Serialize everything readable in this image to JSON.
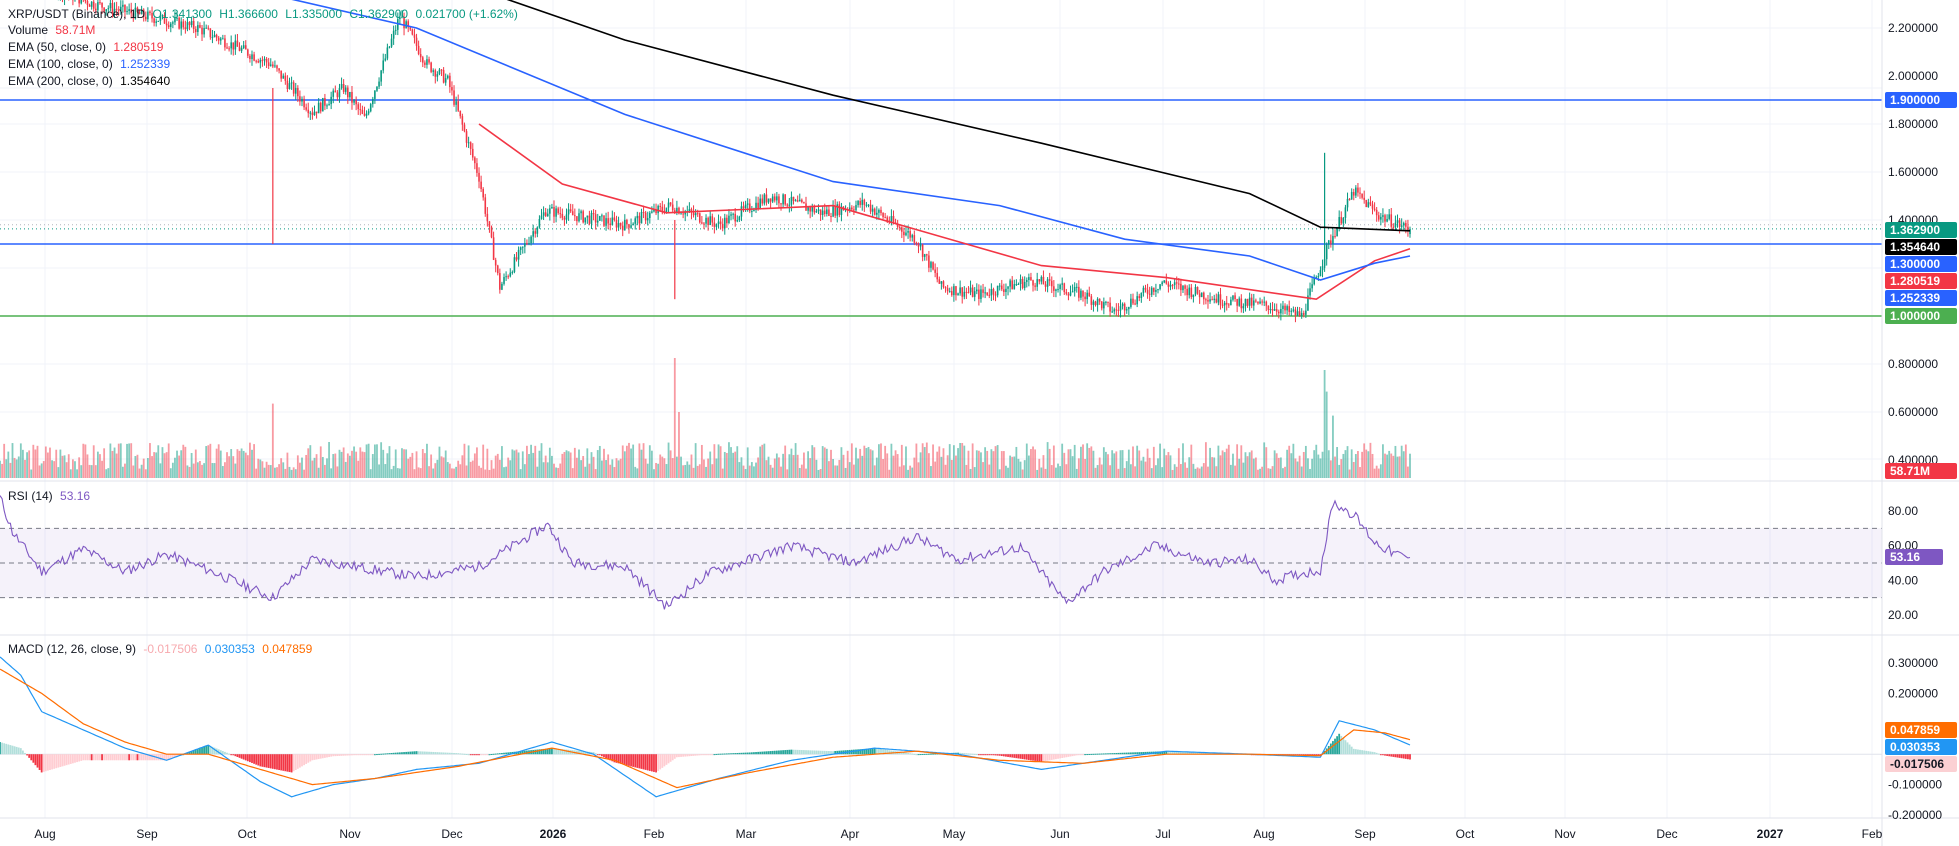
{
  "header": {
    "symbol": "XRP/USDT (Binance), 1D",
    "open": "O1.341300",
    "high": "H1.366600",
    "low": "L1.335000",
    "close": "C1.362900",
    "change": "0.021700 (+1.62%)"
  },
  "legend": {
    "volume": {
      "label": "Volume",
      "value": "58.71M"
    },
    "ema50": {
      "label": "EMA (50, close, 0)",
      "value": "1.280519"
    },
    "ema100": {
      "label": "EMA (100, close, 0)",
      "value": "1.252339"
    },
    "ema200": {
      "label": "EMA (200, close, 0)",
      "value": "1.354640"
    },
    "rsi": {
      "label": "RSI (14)",
      "value": "53.16"
    },
    "macd": {
      "label": "MACD (12, 26, close, 9)",
      "value_hist": "-0.017506",
      "value_macd": "0.030353",
      "value_signal": "0.047859"
    }
  },
  "colors": {
    "up": "#089981",
    "down": "#f23645",
    "ema50": "#f23645",
    "ema100": "#2962ff",
    "ema200": "#000000",
    "hline_blue": "#2962ff",
    "hline_green": "#4caf50",
    "rsi": "#7e57c2",
    "macd": "#2196f3",
    "signal": "#ff6d00"
  },
  "chart_data": [
    {
      "type": "candlestick",
      "x_axis": {
        "labels": [
          "Aug",
          "Sep",
          "Oct",
          "Nov",
          "Dec",
          "2026",
          "Feb",
          "Mar",
          "Apr",
          "May",
          "Jun",
          "Jul",
          "Aug",
          "Sep",
          "Oct",
          "Nov",
          "Dec",
          "2027",
          "Feb"
        ],
        "bold": [
          "2026",
          "2027"
        ]
      },
      "y_axis": {
        "range": [
          0.28,
          2.33
        ],
        "ticks": [
          "2.200000",
          "2.000000",
          "1.800000",
          "1.600000",
          "1.400000",
          "0.800000",
          "0.600000",
          "0.400000"
        ]
      },
      "price_path": [
        [
          0,
          2.45
        ],
        [
          45,
          2.3
        ],
        [
          95,
          2.2
        ],
        [
          130,
          2.05
        ],
        [
          150,
          1.85
        ],
        [
          165,
          1.95
        ],
        [
          175,
          1.82
        ],
        [
          192,
          2.25
        ],
        [
          205,
          2.05
        ],
        [
          215,
          1.98
        ],
        [
          230,
          1.58
        ],
        [
          240,
          1.12
        ],
        [
          262,
          1.44
        ],
        [
          300,
          1.38
        ],
        [
          322,
          1.46
        ],
        [
          345,
          1.38
        ],
        [
          370,
          1.5
        ],
        [
          395,
          1.43
        ],
        [
          415,
          1.47
        ],
        [
          440,
          1.32
        ],
        [
          452,
          1.12
        ],
        [
          470,
          1.09
        ],
        [
          495,
          1.15
        ],
        [
          520,
          1.09
        ],
        [
          535,
          1.02
        ],
        [
          558,
          1.14
        ],
        [
          585,
          1.07
        ],
        [
          610,
          1.04
        ],
        [
          625,
          1.0
        ],
        [
          638,
          1.3
        ],
        [
          650,
          1.52
        ],
        [
          662,
          1.42
        ],
        [
          677,
          1.36
        ]
      ],
      "ohlc_last": {
        "open": 1.3413,
        "high": 1.3666,
        "low": 1.335,
        "close": 1.3629
      },
      "ema": [
        {
          "name": "EMA (50, close, 0)",
          "color": "#f23645",
          "points": [
            [
              230,
              1.8
            ],
            [
              270,
              1.55
            ],
            [
              320,
              1.43
            ],
            [
              400,
              1.46
            ],
            [
              460,
              1.31
            ],
            [
              500,
              1.21
            ],
            [
              560,
              1.16
            ],
            [
              632,
              1.07
            ],
            [
              660,
              1.23
            ],
            [
              677,
              1.28
            ]
          ]
        },
        {
          "name": "EMA (100, close, 0)",
          "color": "#2962ff",
          "points": [
            [
              100,
              2.4
            ],
            [
              200,
              2.2
            ],
            [
              300,
              1.84
            ],
            [
              400,
              1.56
            ],
            [
              480,
              1.46
            ],
            [
              540,
              1.32
            ],
            [
              600,
              1.25
            ],
            [
              634,
              1.15
            ],
            [
              660,
              1.22
            ],
            [
              677,
              1.25
            ]
          ]
        },
        {
          "name": "EMA (200, close, 0)",
          "color": "#000000",
          "points": [
            [
              110,
              2.55
            ],
            [
              200,
              2.45
            ],
            [
              300,
              2.15
            ],
            [
              400,
              1.92
            ],
            [
              500,
              1.72
            ],
            [
              600,
              1.51
            ],
            [
              634,
              1.37
            ],
            [
              677,
              1.355
            ]
          ]
        }
      ],
      "hlines": [
        {
          "label": "1.900000",
          "value": 1.9,
          "color": "#2962ff"
        },
        {
          "label": "1.300000",
          "value": 1.3,
          "color": "#2962ff"
        },
        {
          "label": "1.000000",
          "value": 1.0,
          "color": "#4caf50"
        }
      ],
      "price_labels": [
        {
          "text": "1.362900",
          "value": 1.3629,
          "color": "#089981"
        },
        {
          "text": "1.354640",
          "value": 1.35464,
          "color": "#000000"
        },
        {
          "text": "1.300000",
          "value": 1.3,
          "color": "#2962ff"
        },
        {
          "text": "1.280519",
          "value": 1.280519,
          "color": "#f23645"
        },
        {
          "text": "1.252339",
          "value": 1.252339,
          "color": "#2962ff"
        },
        {
          "text": "1.000000",
          "value": 1.0,
          "color": "#4caf50"
        }
      ],
      "volume_label": {
        "text": "58.71M",
        "color": "#f23645"
      },
      "volume_spikes": [
        [
          131,
          0.62
        ],
        [
          324,
          1.0
        ],
        [
          326,
          0.55
        ],
        [
          636,
          0.9
        ],
        [
          637,
          0.72
        ],
        [
          640,
          0.52
        ]
      ]
    },
    {
      "type": "line",
      "name": "RSI (14)",
      "y_axis": {
        "ticks": [
          "80.00",
          "60.00",
          "40.00",
          "20.00"
        ],
        "range": [
          10,
          90
        ]
      },
      "bands": {
        "upper": 70,
        "middle": 50,
        "lower": 30
      },
      "points": [
        [
          0,
          88
        ],
        [
          6,
          68
        ],
        [
          20,
          45
        ],
        [
          40,
          58
        ],
        [
          60,
          45
        ],
        [
          80,
          55
        ],
        [
          100,
          46
        ],
        [
          131,
          30
        ],
        [
          150,
          52
        ],
        [
          170,
          48
        ],
        [
          200,
          42
        ],
        [
          230,
          48
        ],
        [
          263,
          72
        ],
        [
          275,
          50
        ],
        [
          300,
          48
        ],
        [
          320,
          25
        ],
        [
          340,
          44
        ],
        [
          380,
          60
        ],
        [
          410,
          50
        ],
        [
          440,
          65
        ],
        [
          460,
          52
        ],
        [
          490,
          59
        ],
        [
          512,
          27
        ],
        [
          530,
          45
        ],
        [
          555,
          60
        ],
        [
          580,
          50
        ],
        [
          600,
          52
        ],
        [
          612,
          40
        ],
        [
          625,
          44
        ],
        [
          634,
          46
        ],
        [
          640,
          85
        ],
        [
          650,
          78
        ],
        [
          660,
          62
        ],
        [
          670,
          55
        ],
        [
          677,
          53.16
        ]
      ],
      "last_label": "53.16"
    },
    {
      "type": "line",
      "name": "MACD (12, 26, close, 9)",
      "y_axis": {
        "ticks": [
          "0.300000",
          "0.200000",
          "-0.100000",
          "-0.200000"
        ],
        "range": [
          -0.205,
          0.36
        ]
      },
      "macd_points": [
        [
          0,
          0.32
        ],
        [
          10,
          0.26
        ],
        [
          20,
          0.14
        ],
        [
          40,
          0.08
        ],
        [
          60,
          0.02
        ],
        [
          80,
          -0.02
        ],
        [
          100,
          0.03
        ],
        [
          125,
          -0.09
        ],
        [
          140,
          -0.14
        ],
        [
          160,
          -0.1
        ],
        [
          180,
          -0.08
        ],
        [
          200,
          -0.05
        ],
        [
          230,
          -0.03
        ],
        [
          265,
          0.04
        ],
        [
          285,
          0.0
        ],
        [
          315,
          -0.14
        ],
        [
          345,
          -0.08
        ],
        [
          380,
          -0.02
        ],
        [
          420,
          0.02
        ],
        [
          460,
          0.0
        ],
        [
          500,
          -0.05
        ],
        [
          530,
          -0.02
        ],
        [
          560,
          0.01
        ],
        [
          600,
          0.0
        ],
        [
          634,
          -0.01
        ],
        [
          643,
          0.11
        ],
        [
          660,
          0.08
        ],
        [
          677,
          0.030353
        ]
      ],
      "signal_points": [
        [
          0,
          0.28
        ],
        [
          20,
          0.2
        ],
        [
          40,
          0.1
        ],
        [
          60,
          0.04
        ],
        [
          80,
          0.0
        ],
        [
          100,
          0.0
        ],
        [
          130,
          -0.06
        ],
        [
          150,
          -0.1
        ],
        [
          180,
          -0.08
        ],
        [
          220,
          -0.04
        ],
        [
          265,
          0.02
        ],
        [
          295,
          -0.02
        ],
        [
          325,
          -0.11
        ],
        [
          360,
          -0.06
        ],
        [
          400,
          -0.01
        ],
        [
          440,
          0.01
        ],
        [
          480,
          -0.02
        ],
        [
          520,
          -0.03
        ],
        [
          560,
          0.0
        ],
        [
          600,
          0.0
        ],
        [
          634,
          -0.005
        ],
        [
          650,
          0.08
        ],
        [
          665,
          0.07
        ],
        [
          677,
          0.047859
        ]
      ],
      "labels": [
        {
          "text": "0.047859",
          "value": 0.047859,
          "color": "#ff6d00"
        },
        {
          "text": "0.030353",
          "value": 0.030353,
          "color": "#2196f3"
        },
        {
          "text": "-0.017506",
          "value": -0.017506,
          "color": "#fbd0d3"
        }
      ]
    }
  ]
}
